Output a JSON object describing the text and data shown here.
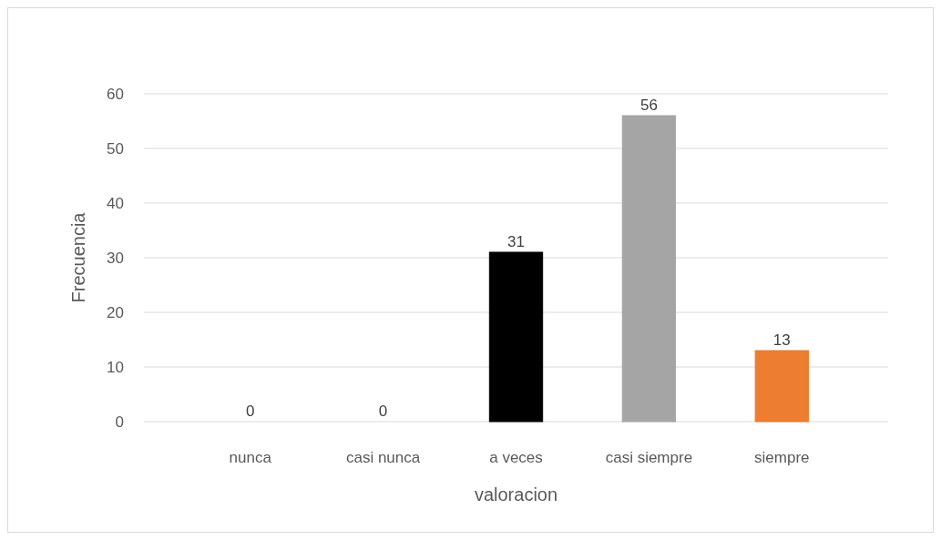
{
  "chart_data": {
    "type": "bar",
    "xlabel": "valoracion",
    "ylabel": "Frecuencia",
    "categories": [
      "nunca",
      "casi nunca",
      "a veces",
      "casi siempre",
      "siempre"
    ],
    "values": [
      0,
      0,
      31,
      56,
      13
    ],
    "colors": [
      "#2f5597",
      "#548235",
      "#000000",
      "#a5a5a5",
      "#ed7d31"
    ],
    "ylim": [
      0,
      60
    ],
    "yticks": [
      0,
      10,
      20,
      30,
      40,
      50,
      60
    ],
    "grid": "y",
    "data_labels": true
  }
}
